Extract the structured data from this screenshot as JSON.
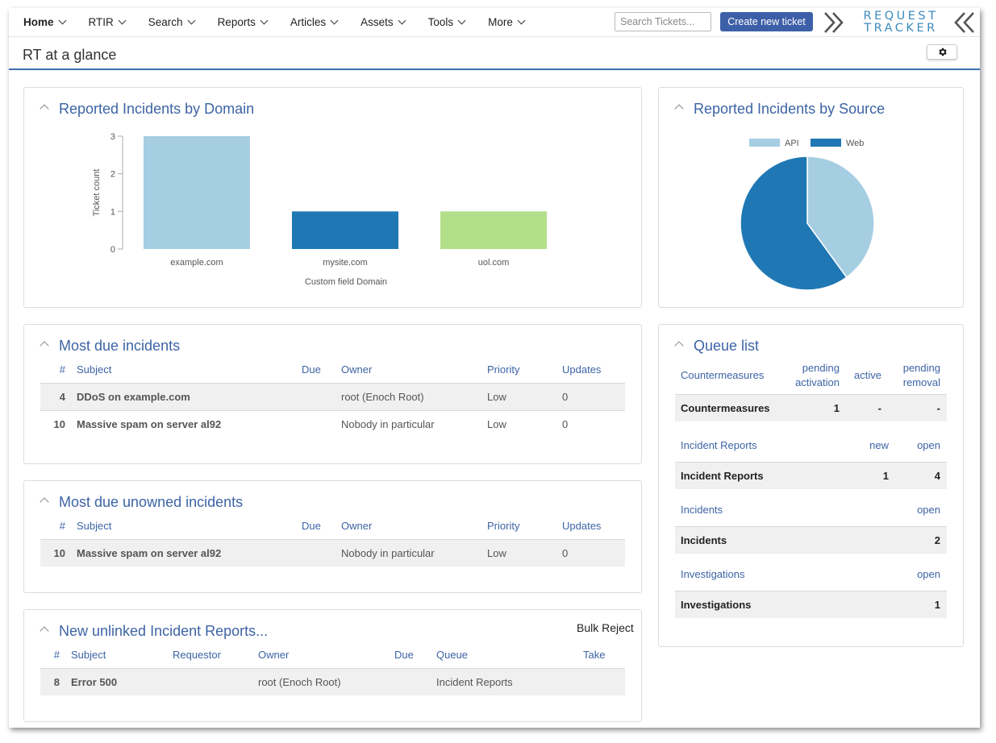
{
  "nav": {
    "items": [
      {
        "label": "Home",
        "active": true
      },
      {
        "label": "RTIR"
      },
      {
        "label": "Search"
      },
      {
        "label": "Reports"
      },
      {
        "label": "Articles"
      },
      {
        "label": "Assets"
      },
      {
        "label": "Tools"
      },
      {
        "label": "More"
      }
    ],
    "search_placeholder": "Search Tickets...",
    "create_button": "Create new ticket",
    "logo_line1": "REQUEST",
    "logo_line2": "TRACKER"
  },
  "page": {
    "title": "RT at a glance"
  },
  "domain_panel": {
    "title": "Reported Incidents by Domain",
    "chart_data": {
      "type": "bar",
      "categories": [
        "example.com",
        "mysite.com",
        "uol.com"
      ],
      "values": [
        3,
        1,
        1
      ],
      "colors": [
        "#a6cee3",
        "#1f78b4",
        "#b2df8a"
      ],
      "xlabel": "Custom field Domain",
      "ylabel": "Ticket count",
      "ylim": [
        0,
        3
      ],
      "yticks": [
        "0",
        "1",
        "2",
        "3"
      ]
    }
  },
  "source_panel": {
    "title": "Reported Incidents by Source",
    "chart_data": {
      "type": "pie",
      "categories": [
        "API",
        "Web"
      ],
      "values": [
        2,
        3
      ],
      "colors": [
        "#a6cee3",
        "#1f78b4"
      ],
      "legend": "top"
    }
  },
  "due_panel": {
    "title": "Most due incidents",
    "headers": {
      "num": "#",
      "subject": "Subject",
      "due": "Due",
      "owner": "Owner",
      "priority": "Priority",
      "updates": "Updates"
    },
    "rows": [
      {
        "num": "4",
        "subject": "DDoS on example.com",
        "due": "",
        "owner": "root (Enoch Root)",
        "priority": "Low",
        "updates": "0"
      },
      {
        "num": "10",
        "subject": "Massive spam on server al92",
        "due": "",
        "owner": "Nobody in particular",
        "priority": "Low",
        "updates": "0"
      }
    ]
  },
  "unowned_panel": {
    "title": "Most due unowned incidents",
    "headers": {
      "num": "#",
      "subject": "Subject",
      "due": "Due",
      "owner": "Owner",
      "priority": "Priority",
      "updates": "Updates"
    },
    "rows": [
      {
        "num": "10",
        "subject": "Massive spam on server al92",
        "due": "",
        "owner": "Nobody in particular",
        "priority": "Low",
        "updates": "0"
      }
    ]
  },
  "unlinked_panel": {
    "title": "New unlinked Incident Reports...",
    "bulk_label": "Bulk Reject",
    "headers": {
      "num": "#",
      "subject": "Subject",
      "requestor": "Requestor",
      "owner": "Owner",
      "due": "Due",
      "queue": "Queue",
      "take": "Take"
    },
    "rows": [
      {
        "num": "8",
        "subject": "Error 500",
        "requestor": "",
        "owner": "root (Enoch Root)",
        "due": "",
        "queue": "Incident Reports",
        "take": ""
      }
    ]
  },
  "queue_panel": {
    "title": "Queue list",
    "groups": [
      {
        "name": "Countermeasures",
        "cols": [
          "pending activation",
          "active",
          "pending removal"
        ],
        "row": {
          "name": "Countermeasures",
          "values": [
            "1",
            "-",
            "-"
          ]
        }
      },
      {
        "name": "Incident Reports",
        "cols": [
          "new",
          "open"
        ],
        "row": {
          "name": "Incident Reports",
          "values": [
            "1",
            "4"
          ]
        }
      },
      {
        "name": "Incidents",
        "cols": [
          "open"
        ],
        "row": {
          "name": "Incidents",
          "values": [
            "2"
          ]
        }
      },
      {
        "name": "Investigations",
        "cols": [
          "open"
        ],
        "row": {
          "name": "Investigations",
          "values": [
            "1"
          ]
        }
      }
    ]
  }
}
